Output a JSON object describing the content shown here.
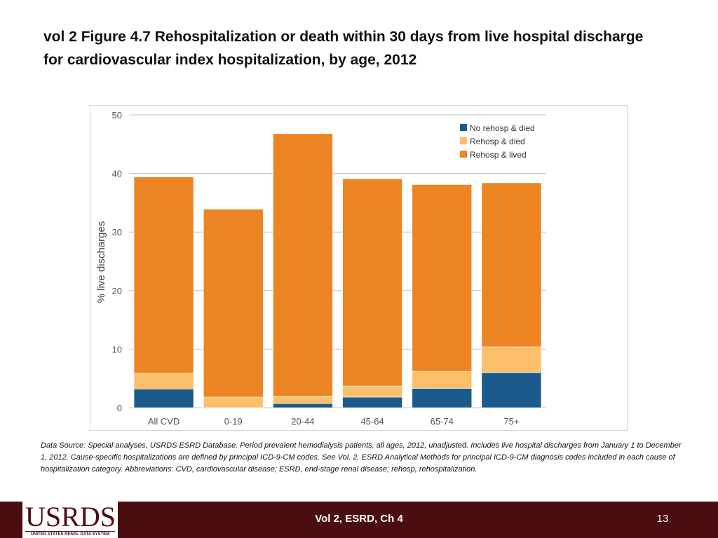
{
  "slide": {
    "title": "vol 2 Figure 4.7 Rehospitalization or death within 30 days from live hospital discharge for cardiovascular index hospitalization, by age, 2012",
    "source_note": "Data Source: Special analyses, USRDS ESRD Database. Period prevalent hemodialysis patients, all ages, 2012, unadjusted. Includes live hospital discharges from January 1 to December 1, 2012. Cause-specific hospitalizations are defined by principal ICD-9-CM codes. See Vol. 2, ESRD Analytical Methods for principal ICD-9-CM diagnosis codes included in each cause of hospitalization category. Abbreviations: CVD, cardiovascular disease; ESRD, end-stage renal disease; rehosp, rehospitalization."
  },
  "footer": {
    "logo_text": "USRDS",
    "logo_subtext": "UNITED STATES RENAL DATA SYSTEM",
    "center_text": "Vol 2, ESRD, Ch 4",
    "page_number": "13"
  },
  "colors": {
    "no_rehosp_died": "#1a5a8c",
    "rehosp_died": "#fbbf6a",
    "rehosp_lived": "#ec8424",
    "gridline": "#bfbfbf",
    "footer_bar": "#4b0d10"
  },
  "chart_data": {
    "type": "bar",
    "stacked": true,
    "categories": [
      "All CVD",
      "0-19",
      "20-44",
      "45-64",
      "65-74",
      "75+"
    ],
    "series": [
      {
        "name": "No rehosp & died",
        "values": [
          3.2,
          0.0,
          0.7,
          1.8,
          3.3,
          6.0
        ]
      },
      {
        "name": "Rehosp & died",
        "values": [
          2.7,
          1.8,
          1.3,
          1.9,
          2.9,
          4.4
        ]
      },
      {
        "name": "Rehosp & lived",
        "values": [
          33.5,
          32.1,
          44.8,
          35.4,
          31.9,
          28.0
        ]
      }
    ],
    "ylabel": "% live discharges",
    "xlabel": "",
    "ylim": [
      0,
      50
    ],
    "yticks": [
      0,
      10,
      20,
      30,
      40,
      50
    ],
    "grid": true,
    "legend_position": "top-right"
  }
}
